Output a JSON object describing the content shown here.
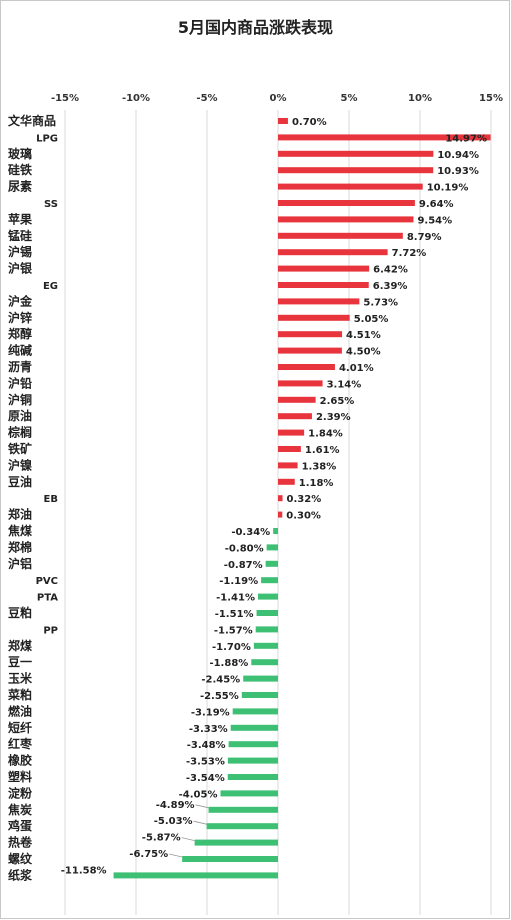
{
  "chart_data": {
    "type": "bar",
    "orientation": "horizontal",
    "title": "5月国内商品涨跌表现",
    "xlim": [
      -15,
      15
    ],
    "x_ticks": [
      "-15%",
      "-10%",
      "-5%",
      "0%",
      "5%",
      "10%",
      "15%"
    ],
    "x_tick_values": [
      -15,
      -10,
      -5,
      0,
      5,
      10,
      15
    ],
    "grid": "vertical",
    "legend": "none",
    "colors": {
      "positive": "#e8353d",
      "negative": "#3dbf74",
      "gridline": "#d9d9d9",
      "leader_line": "#999999"
    },
    "categories": [
      "文华商品",
      "LPG",
      "玻璃",
      "硅铁",
      "尿素",
      "SS",
      "苹果",
      "锰硅",
      "沪锡",
      "沪银",
      "EG",
      "沪金",
      "沪锌",
      "郑醇",
      "纯碱",
      "沥青",
      "沪铅",
      "沪铜",
      "原油",
      "棕榈",
      "铁矿",
      "沪镍",
      "豆油",
      "EB",
      "郑油",
      "焦煤",
      "郑棉",
      "沪铝",
      "PVC",
      "PTA",
      "豆粕",
      "PP",
      "郑煤",
      "豆一",
      "玉米",
      "菜粕",
      "燃油",
      "短纤",
      "红枣",
      "橡胶",
      "塑料",
      "淀粉",
      "焦炭",
      "鸡蛋",
      "热卷",
      "螺纹",
      "纸浆"
    ],
    "values": [
      0.7,
      14.97,
      10.94,
      10.93,
      10.19,
      9.64,
      9.54,
      8.79,
      7.72,
      6.42,
      6.39,
      5.73,
      5.05,
      4.51,
      4.5,
      4.01,
      3.14,
      2.65,
      2.39,
      1.84,
      1.61,
      1.38,
      1.18,
      0.32,
      0.3,
      -0.34,
      -0.8,
      -0.87,
      -1.19,
      -1.41,
      -1.51,
      -1.57,
      -1.7,
      -1.88,
      -2.45,
      -2.55,
      -3.19,
      -3.33,
      -3.48,
      -3.53,
      -3.54,
      -4.05,
      -4.89,
      -5.03,
      -5.87,
      -6.75,
      -11.58
    ],
    "data_labels": [
      "0.70%",
      "14.97%",
      "10.94%",
      "10.93%",
      "10.19%",
      "9.64%",
      "9.54%",
      "8.79%",
      "7.72%",
      "6.42%",
      "6.39%",
      "5.73%",
      "5.05%",
      "4.51%",
      "4.50%",
      "4.01%",
      "3.14%",
      "2.65%",
      "2.39%",
      "1.84%",
      "1.61%",
      "1.38%",
      "1.18%",
      "0.32%",
      "0.30%",
      "-0.34%",
      "-0.80%",
      "-0.87%",
      "-1.19%",
      "-1.41%",
      "-1.51%",
      "-1.57%",
      "-1.70%",
      "-1.88%",
      "-2.45%",
      "-2.55%",
      "-3.19%",
      "-3.33%",
      "-3.48%",
      "-3.53%",
      "-3.54%",
      "-4.05%",
      "-4.89%",
      "-5.03%",
      "-5.87%",
      "-6.75%",
      "-11.58%"
    ]
  }
}
